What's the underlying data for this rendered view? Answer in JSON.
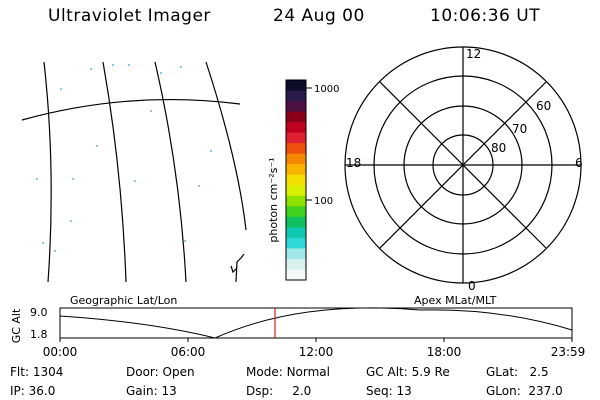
{
  "header": {
    "instrument": "Ultraviolet Imager",
    "date": "24 Aug 00",
    "time": "10:06:36 UT"
  },
  "colorbar": {
    "label": "photon cm⁻²s⁻¹",
    "ticks": [
      "1000",
      "100"
    ],
    "colors": [
      "#0d0d2a",
      "#2a1a4a",
      "#4a1040",
      "#8a0018",
      "#c00020",
      "#e02030",
      "#ee5010",
      "#f58a00",
      "#f7b400",
      "#f4e000",
      "#d8f000",
      "#90e000",
      "#40d020",
      "#10c060",
      "#10c8b0",
      "#30d8d8",
      "#a0e8e8",
      "#d8f0f0",
      "#f4f8f8"
    ]
  },
  "polar_plot": {
    "lat_labels": [
      "60",
      "70",
      "80"
    ],
    "mlt_labels": [
      "12",
      "18",
      "6",
      "0"
    ]
  },
  "timeline": {
    "y_axis_label": "GC Alt",
    "y_max_label": "9.0",
    "y_min_label": "1.8",
    "left_caption": "Geographic Lat/Lon",
    "right_caption": "Apex MLat/MLT",
    "x_ticks": [
      "00:00",
      "06:00",
      "12:00",
      "18:00",
      "23:59"
    ],
    "marker_color": "#cc2222"
  },
  "footer": {
    "row1": [
      {
        "label": "Flt:",
        "value": "1304"
      },
      {
        "label": "Door:",
        "value": "Open"
      },
      {
        "label": "Mode:",
        "value": "Normal"
      },
      {
        "label": "GC Alt:",
        "value": "5.9 Re"
      },
      {
        "label": "GLat:",
        "value": "2.5"
      }
    ],
    "row2": [
      {
        "label": "IP:",
        "value": "36.0"
      },
      {
        "label": "Gain:",
        "value": "13"
      },
      {
        "label": "Dsp:",
        "value": "2.0"
      },
      {
        "label": "Seq:",
        "value": "13"
      },
      {
        "label": "GLon:",
        "value": "237.0"
      }
    ]
  }
}
